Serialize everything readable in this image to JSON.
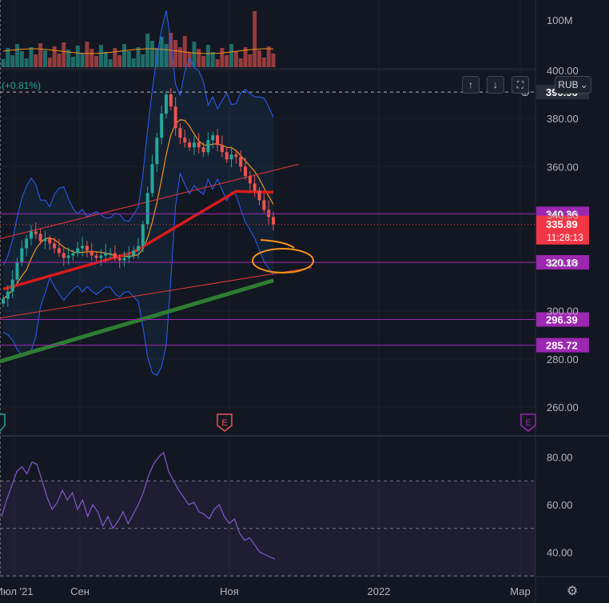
{
  "header": {
    "change_pct": "(+0.81%)",
    "currency": "RUB"
  },
  "controls": [
    {
      "name": "scroll-up-button",
      "glyph": "↑"
    },
    {
      "name": "scroll-down-button",
      "glyph": "↓"
    },
    {
      "name": "fit-screen-button",
      "glyph": "⛶"
    }
  ],
  "colors": {
    "background": "#131722",
    "grid": "#2a2e39",
    "up": "#26a69a",
    "down": "#ef5350",
    "level_line": "#9c27b0",
    "bollinger": "#2962ff",
    "ma_short": "#f7931a",
    "ma_mid": "#d81b1b",
    "ma_long": "#2e7d32",
    "trend": "#e53935",
    "rsi": "#7e57c2",
    "current_price": "#f23645"
  },
  "chart_data": [
    {
      "type": "candlestick",
      "y_axis": {
        "range": [
          248,
          400
        ],
        "ticks": [
          "260.00",
          "280.00",
          "300.00",
          "320.00",
          "340.00",
          "360.00",
          "380.00",
          "400.00"
        ]
      },
      "x_axis": {
        "ticks": [
          "Июл '21",
          "Сен",
          "Ноя",
          "2022",
          "Мар"
        ]
      },
      "price_labels": [
        {
          "value": 390.96,
          "label": "390.96",
          "style": "last-high"
        },
        {
          "value": 340.36,
          "label": "340.36",
          "style": "level"
        },
        {
          "value": 320.18,
          "label": "320.18",
          "style": "level"
        },
        {
          "value": 296.39,
          "label": "296.39",
          "style": "level"
        },
        {
          "value": 285.72,
          "label": "285.72",
          "style": "level"
        }
      ],
      "current_price": {
        "value": 335.89,
        "label": "335.89",
        "countdown": "11:28:13"
      },
      "earnings_markers": [
        "E",
        "E"
      ],
      "volume_axis_label": "100M",
      "series": [
        {
          "name": "close",
          "values": [
            305,
            308,
            313,
            320,
            326,
            330,
            333,
            332,
            329,
            330,
            328,
            326,
            324,
            322,
            323,
            324,
            326,
            327,
            325,
            323,
            322,
            323,
            324,
            324,
            322,
            321,
            322,
            323,
            325,
            327,
            336,
            349,
            361,
            372,
            382,
            390,
            385,
            376,
            372,
            370,
            368,
            370,
            368,
            366,
            371,
            373,
            369,
            366,
            363,
            365,
            364,
            360,
            356,
            353,
            350,
            346,
            342,
            339,
            336
          ]
        }
      ]
    },
    {
      "type": "line",
      "name": "rsi",
      "y_axis": {
        "range": [
          30,
          88
        ],
        "ticks": [
          "40.00",
          "60.00",
          "80.00"
        ],
        "band": [
          30,
          70
        ],
        "midline": 50
      },
      "values": [
        55,
        62,
        68,
        74,
        76,
        73,
        78,
        77,
        70,
        63,
        58,
        61,
        66,
        62,
        65,
        58,
        62,
        55,
        60,
        57,
        51,
        55,
        50,
        53,
        57,
        52,
        56,
        60,
        65,
        72,
        77,
        80,
        82,
        74,
        70,
        66,
        63,
        60,
        61,
        57,
        56,
        54,
        58,
        60,
        55,
        52,
        54,
        48,
        45,
        46,
        43,
        40,
        39,
        38,
        37
      ]
    }
  ]
}
